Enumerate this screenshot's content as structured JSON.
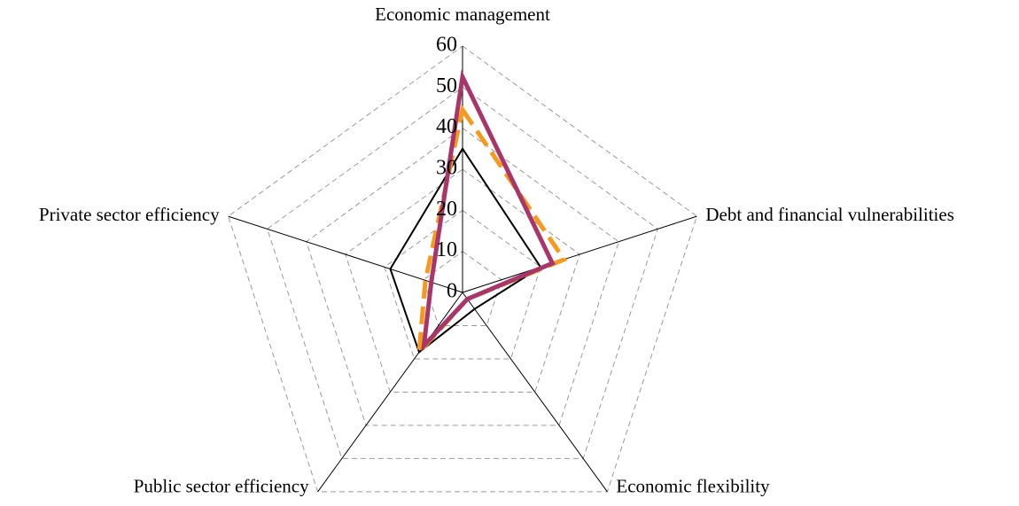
{
  "chart_data": {
    "type": "radar",
    "categories": [
      "Economic management",
      "Debt and financial vulnerabilities",
      "Economic flexibility",
      "Public sector efficiency",
      "Private sector efficiency"
    ],
    "series": [
      {
        "color": "#000000",
        "values": [
          35,
          20,
          5,
          18,
          18.5
        ],
        "dash": false
      },
      {
        "color": "#f59a1b",
        "values": [
          44.5,
          26,
          2,
          18,
          9.5
        ],
        "dash": true
      },
      {
        "color": "#a8366a",
        "values": [
          52.5,
          23,
          2,
          16,
          8
        ],
        "dash": false
      }
    ],
    "ylim": [
      0,
      60
    ],
    "yticks": [
      0,
      10,
      20,
      30,
      40,
      50,
      60
    ],
    "grid": true
  }
}
